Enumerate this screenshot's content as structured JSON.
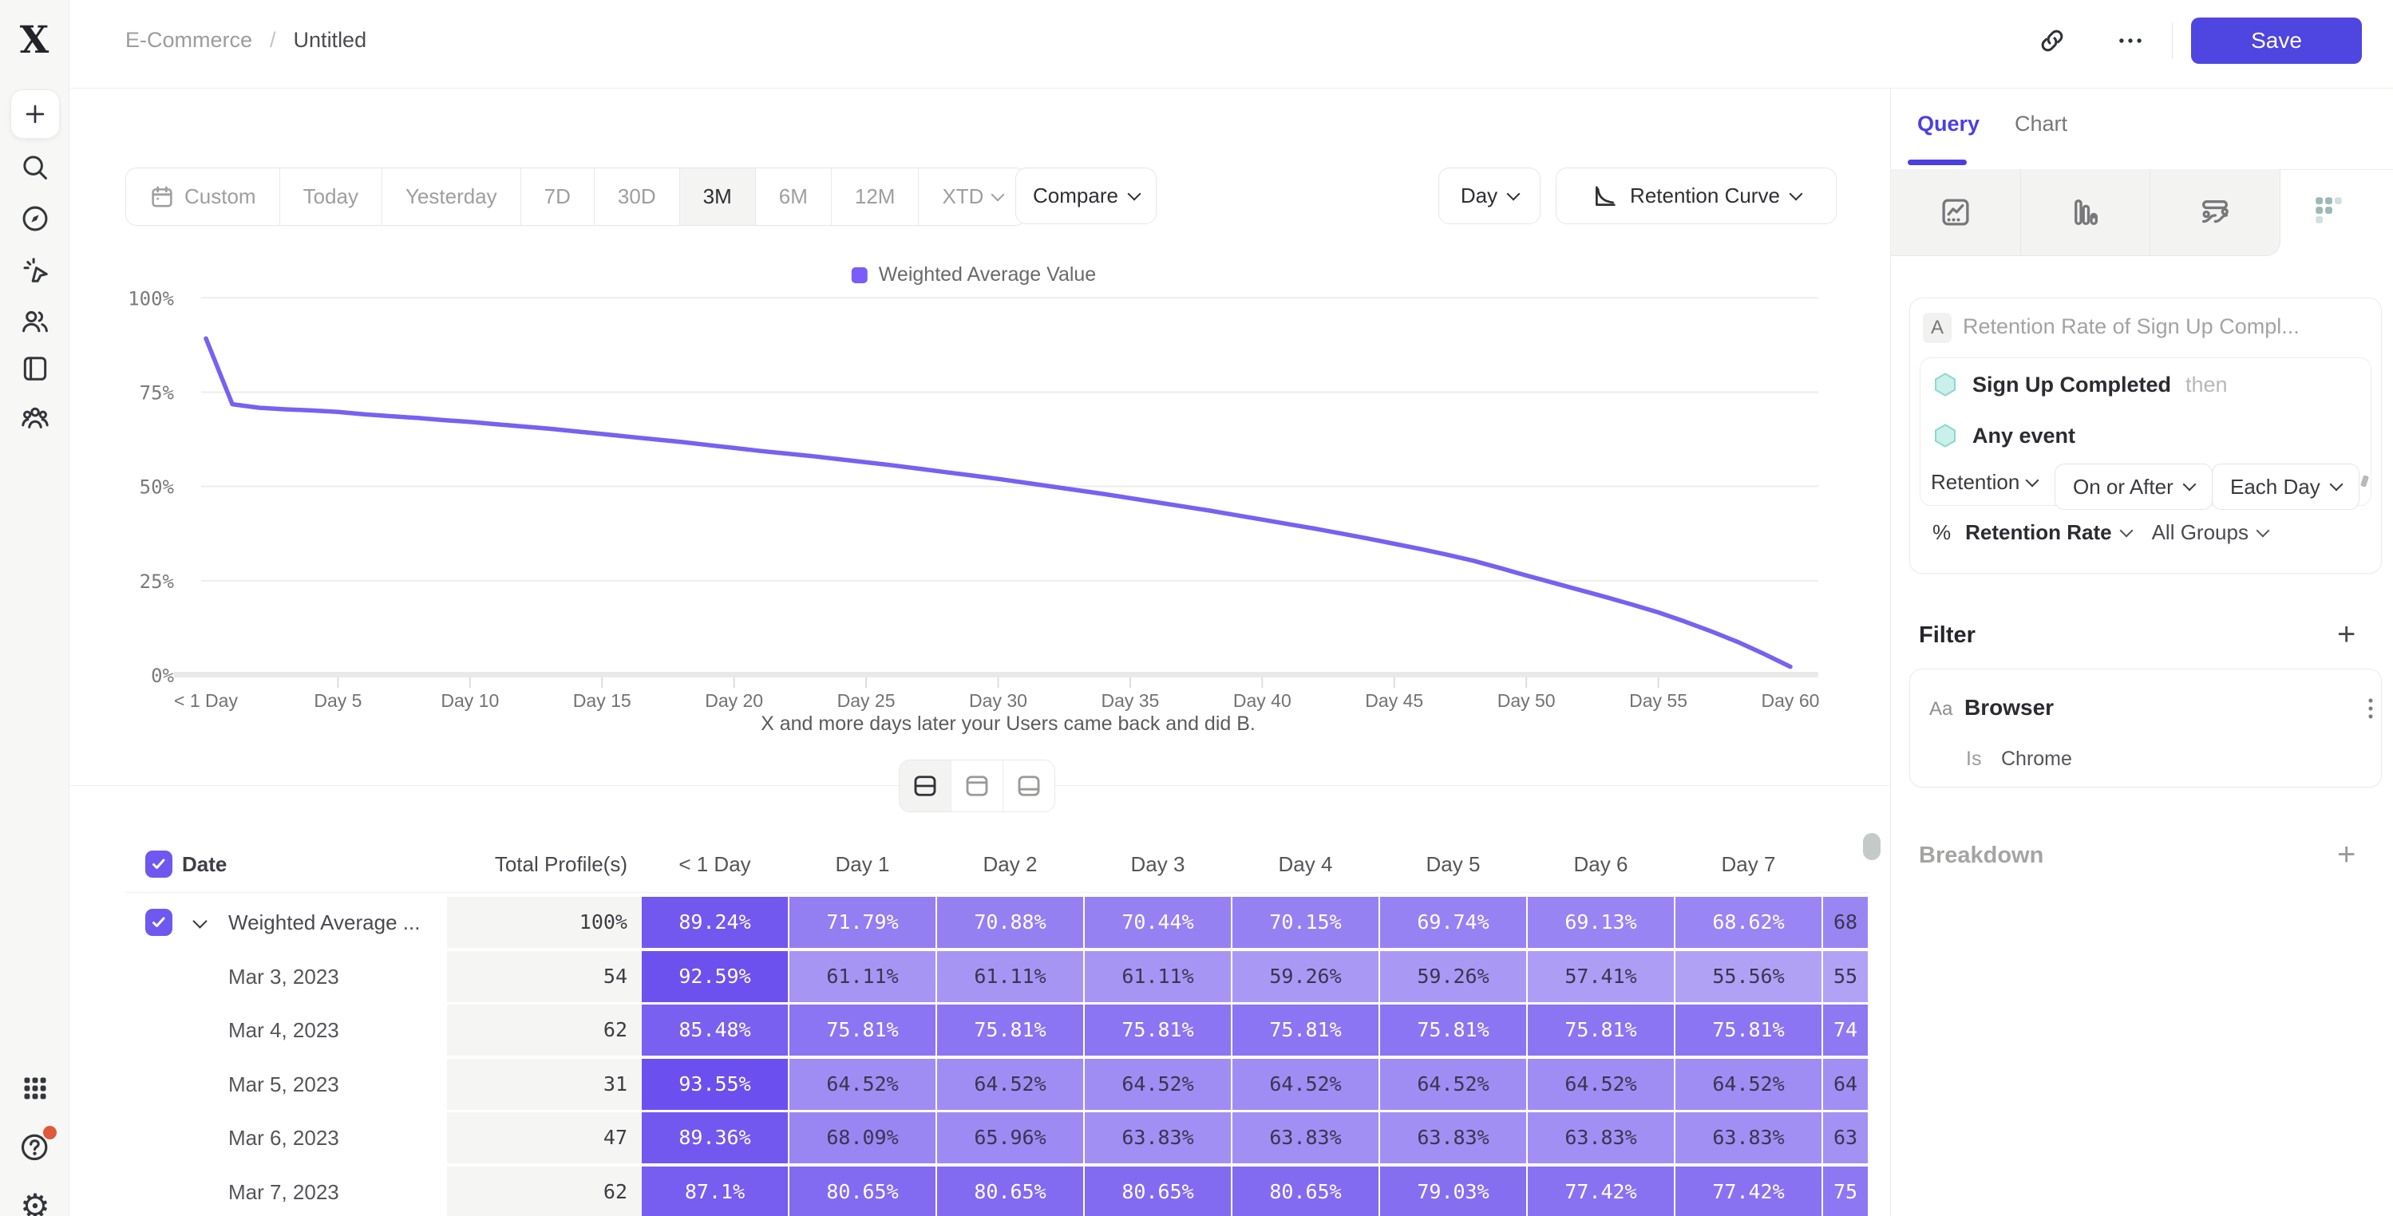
{
  "app": {
    "logo_letter": "X"
  },
  "header": {
    "breadcrumb_parent": "E-Commerce",
    "breadcrumb_separator": "/",
    "breadcrumb_current": "Untitled",
    "actions": {
      "link_icon": "link-icon",
      "more_icon": "ellipsis-icon",
      "save_label": "Save"
    }
  },
  "sidebar": {
    "items": [
      {
        "name": "new",
        "icon": "plus-icon"
      },
      {
        "name": "search",
        "icon": "search-icon"
      },
      {
        "name": "explore",
        "icon": "compass-icon"
      },
      {
        "name": "events",
        "icon": "cursor-spark-icon"
      },
      {
        "name": "users",
        "icon": "users-icon"
      },
      {
        "name": "reports",
        "icon": "book-icon"
      },
      {
        "name": "cohorts",
        "icon": "group-icon"
      }
    ],
    "bottom_items": [
      {
        "name": "apps",
        "icon": "grid-icon"
      },
      {
        "name": "help",
        "icon": "help-icon",
        "badge_color": "#E0593A"
      },
      {
        "name": "settings",
        "icon": "gear-icon"
      }
    ]
  },
  "toolbar": {
    "date_ranges": [
      {
        "label": "Custom",
        "icon": "calendar-icon"
      },
      {
        "label": "Today"
      },
      {
        "label": "Yesterday"
      },
      {
        "label": "7D"
      },
      {
        "label": "30D"
      },
      {
        "label": "3M",
        "active": true
      },
      {
        "label": "6M"
      },
      {
        "label": "12M"
      },
      {
        "label": "XTD",
        "chevron": true
      }
    ],
    "compare_label": "Compare",
    "granularity_label": "Day",
    "view_label": "Retention Curve",
    "view_icon": "retention-curve-icon"
  },
  "chart_data": {
    "type": "line",
    "legend": "Weighted Average Value",
    "series": [
      {
        "name": "Weighted Average Value",
        "color": "#7761F2",
        "points": [
          [
            0,
            89.24
          ],
          [
            1,
            71.79
          ],
          [
            2,
            70.88
          ],
          [
            3,
            70.44
          ],
          [
            4,
            70.15
          ],
          [
            5,
            69.74
          ],
          [
            6,
            69.13
          ],
          [
            7,
            68.62
          ],
          [
            8,
            68.17
          ],
          [
            9,
            67.6
          ],
          [
            10,
            67.1
          ],
          [
            11,
            66.5
          ],
          [
            12,
            65.9
          ],
          [
            13,
            65.3
          ],
          [
            14,
            64.6
          ],
          [
            15,
            63.9
          ],
          [
            16,
            63.2
          ],
          [
            17,
            62.5
          ],
          [
            18,
            61.8
          ],
          [
            19,
            61.0
          ],
          [
            20,
            60.2
          ],
          [
            21,
            59.4
          ],
          [
            22,
            58.7
          ],
          [
            23,
            58.0
          ],
          [
            24,
            57.2
          ],
          [
            25,
            56.4
          ],
          [
            26,
            55.6
          ],
          [
            27,
            54.7
          ],
          [
            28,
            53.8
          ],
          [
            29,
            52.9
          ],
          [
            30,
            52.0
          ],
          [
            31,
            51.0
          ],
          [
            32,
            50.0
          ],
          [
            33,
            49.0
          ],
          [
            34,
            48.0
          ],
          [
            35,
            46.9
          ],
          [
            36,
            45.8
          ],
          [
            37,
            44.7
          ],
          [
            38,
            43.6
          ],
          [
            39,
            42.4
          ],
          [
            40,
            41.2
          ],
          [
            41,
            40.0
          ],
          [
            42,
            38.8
          ],
          [
            43,
            37.5
          ],
          [
            44,
            36.2
          ],
          [
            45,
            34.8
          ],
          [
            46,
            33.4
          ],
          [
            47,
            31.9
          ],
          [
            48,
            30.3
          ],
          [
            49,
            28.4
          ],
          [
            50,
            26.4
          ],
          [
            51,
            24.5
          ],
          [
            52,
            22.6
          ],
          [
            53,
            20.7
          ],
          [
            54,
            18.7
          ],
          [
            55,
            16.6
          ],
          [
            56,
            14.2
          ],
          [
            57,
            11.6
          ],
          [
            58,
            8.8
          ],
          [
            59,
            5.6
          ],
          [
            60,
            2.2
          ]
        ]
      }
    ],
    "x_tick_labels": [
      "< 1 Day",
      "Day 5",
      "Day 10",
      "Day 15",
      "Day 20",
      "Day 25",
      "Day 30",
      "Day 35",
      "Day 40",
      "Day 45",
      "Day 50",
      "Day 55",
      "Day 60"
    ],
    "y_tick_labels": [
      "100%",
      "75%",
      "50%",
      "25%",
      "0%"
    ],
    "y_ticks": [
      100,
      75,
      50,
      25,
      0
    ],
    "ylim": [
      0,
      100
    ],
    "xlabel": "X and more days later your Users came back and did B.",
    "grid": true,
    "legend_position": "top-center"
  },
  "view_toggle": {
    "options": [
      {
        "name": "split-view",
        "icon": "layout-split-icon",
        "active": true
      },
      {
        "name": "chart-view",
        "icon": "layout-top-icon"
      },
      {
        "name": "table-view",
        "icon": "layout-bottom-icon"
      }
    ]
  },
  "table": {
    "select_all_checked": true,
    "columns": [
      "Date",
      "Total Profile(s)",
      "< 1 Day",
      "Day 1",
      "Day 2",
      "Day 3",
      "Day 4",
      "Day 5",
      "Day 6",
      "Day 7"
    ],
    "value_suffix": "%",
    "rows": [
      {
        "label": "Weighted Average ...",
        "checked": true,
        "expandable": true,
        "total": "100%",
        "values": [
          89.24,
          71.79,
          70.88,
          70.44,
          70.15,
          69.74,
          69.13,
          68.62
        ],
        "clipped": "68"
      },
      {
        "label": "Mar 3, 2023",
        "total": "54",
        "values": [
          92.59,
          61.11,
          61.11,
          61.11,
          59.26,
          59.26,
          57.41,
          55.56
        ],
        "clipped": "55"
      },
      {
        "label": "Mar 4, 2023",
        "total": "62",
        "values": [
          85.48,
          75.81,
          75.81,
          75.81,
          75.81,
          75.81,
          75.81,
          75.81
        ],
        "clipped": "74"
      },
      {
        "label": "Mar 5, 2023",
        "total": "31",
        "values": [
          93.55,
          64.52,
          64.52,
          64.52,
          64.52,
          64.52,
          64.52,
          64.52
        ],
        "clipped": "64"
      },
      {
        "label": "Mar 6, 2023",
        "total": "47",
        "values": [
          89.36,
          68.09,
          65.96,
          63.83,
          63.83,
          63.83,
          63.83,
          63.83
        ],
        "clipped": "63"
      },
      {
        "label": "Mar 7, 2023",
        "total": "62",
        "values": [
          87.1,
          80.65,
          80.65,
          80.65,
          80.65,
          79.03,
          77.42,
          77.42
        ],
        "clipped": "75"
      }
    ]
  },
  "panel": {
    "tabs": [
      {
        "label": "Query",
        "active": true
      },
      {
        "label": "Chart"
      }
    ],
    "chart_type_tabs": [
      {
        "name": "line-chart",
        "icon": "line-chart-icon"
      },
      {
        "name": "bar-chart",
        "icon": "bar-chart-icon"
      },
      {
        "name": "flow-chart",
        "icon": "flow-icon"
      },
      {
        "name": "retention-grid",
        "icon": "retention-grid-icon",
        "selected": true,
        "color": "#9DB8B6"
      }
    ],
    "query": {
      "badge": "A",
      "title": "Retention Rate of Sign Up Compl...",
      "steps": [
        {
          "name": "Sign Up Completed",
          "suffix": "then",
          "icon": "hexagon-icon"
        },
        {
          "name": "Any event",
          "suffix": "",
          "icon": "hexagon-icon"
        }
      ],
      "controls": [
        {
          "label": "Retention",
          "style": "plain"
        },
        {
          "label": "On or After",
          "style": "outlined"
        },
        {
          "label": "Each Day",
          "style": "outlined"
        }
      ],
      "measure_prefix": "%",
      "measure_label": "Retention Rate",
      "groups_label": "All Groups"
    },
    "filter": {
      "title": "Filter",
      "add_icon": "plus-icon",
      "items": [
        {
          "type_label": "Aa",
          "property": "Browser",
          "operator": "Is",
          "value": "Chrome",
          "menu_icon": "kebab-icon"
        }
      ]
    },
    "breakdown": {
      "title": "Breakdown",
      "add_icon": "plus-icon"
    }
  },
  "colors": {
    "accent": "#4F45E0",
    "tab_active": "#4B3FE2",
    "curve": "#7761F2",
    "legend_square": "#7B5BFA",
    "checkbox": "#6E58F0",
    "cell_deep": "#6C50EF",
    "cell_light": "#B2A2F5",
    "help_badge": "#E0593A",
    "hexagon_fill": "#C9F0EB",
    "hexagon_stroke": "#8FD7CE"
  }
}
